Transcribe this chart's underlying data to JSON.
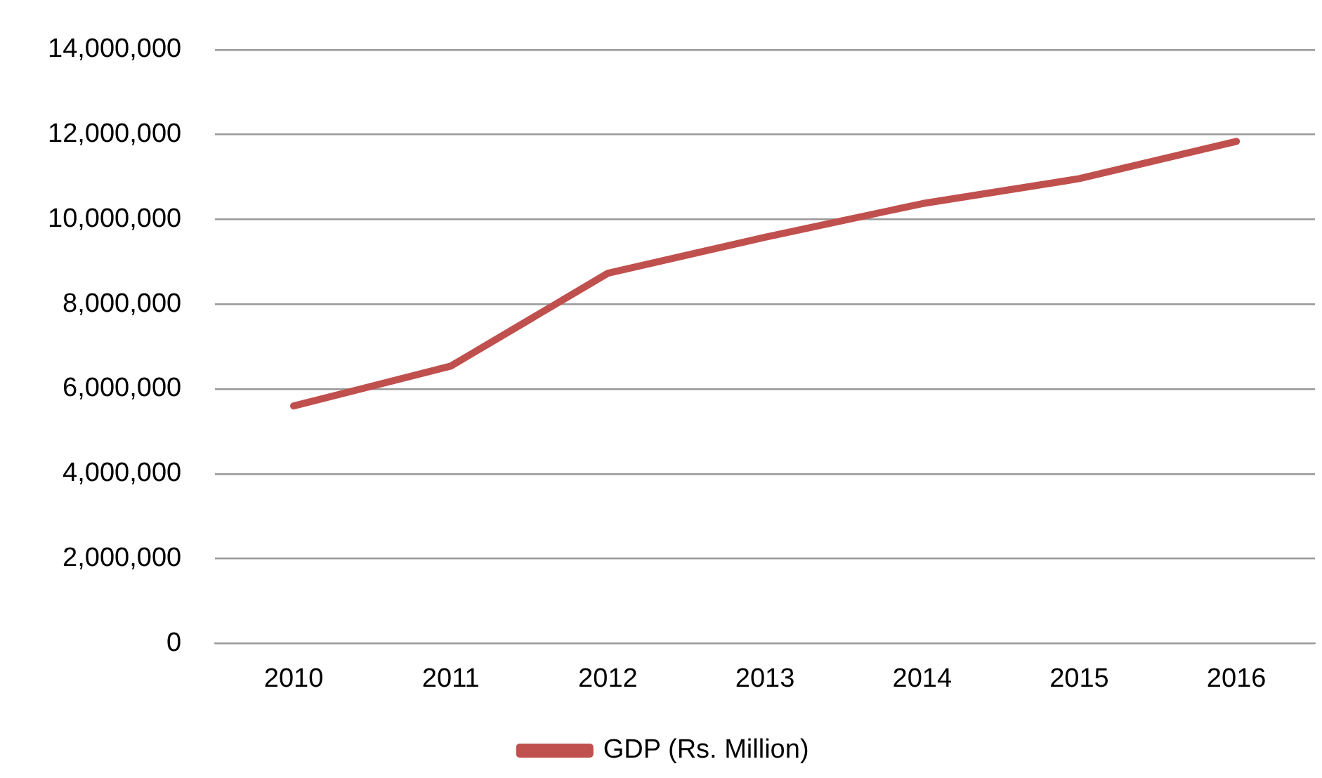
{
  "chart_data": {
    "type": "line",
    "categories": [
      "2010",
      "2011",
      "2012",
      "2013",
      "2014",
      "2015",
      "2016"
    ],
    "series": [
      {
        "name": "GDP (Rs. Million)",
        "color": "#c0504d",
        "values": [
          5600000,
          6540000,
          8730000,
          9580000,
          10370000,
          10960000,
          11840000
        ]
      }
    ],
    "ylim": [
      0,
      14000000
    ],
    "yticks": [
      0,
      {
        "value": 2000000,
        "label": "2,000,000"
      },
      {
        "value": 4000000,
        "label": "4,000,000"
      },
      {
        "value": 6000000,
        "label": "6,000,000"
      },
      {
        "value": 8000000,
        "label": "8,000,000"
      },
      {
        "value": 10000000,
        "label": "10,000,000"
      },
      {
        "value": 12000000,
        "label": "12,000,000"
      },
      {
        "value": 14000000,
        "label": "14,000,000"
      }
    ],
    "grid": "y",
    "legend": "bottom",
    "marker": "none",
    "line_style": "solid"
  }
}
